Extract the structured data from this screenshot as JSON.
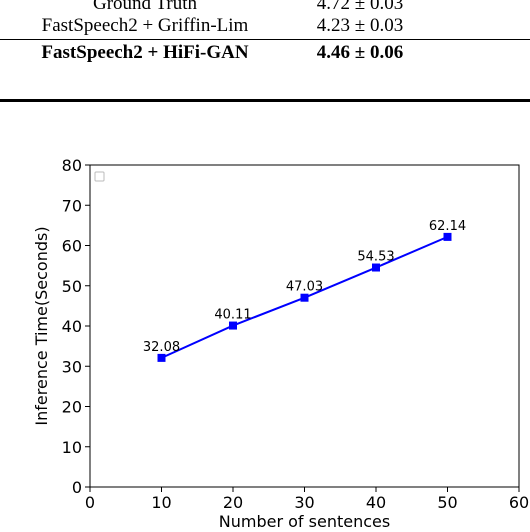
{
  "table": {
    "rows": [
      {
        "method": "Ground Truth",
        "score": "4.72 ± 0.03",
        "bold": false
      },
      {
        "method": "FastSpeech2 + Griffin-Lim",
        "score": "4.23 ± 0.03",
        "bold": false
      },
      {
        "method": "FastSpeech2 + HiFi-GAN",
        "score": "4.46 ± 0.06",
        "bold": true
      }
    ]
  },
  "chart_data": {
    "type": "line",
    "title": "",
    "xlabel": "Number of sentences",
    "ylabel": "Inference Time(Seconds)",
    "xlim": [
      0,
      60
    ],
    "ylim": [
      0,
      80
    ],
    "xticks": [
      0,
      10,
      20,
      30,
      40,
      50,
      60
    ],
    "yticks": [
      0,
      10,
      20,
      30,
      40,
      50,
      60,
      70,
      80
    ],
    "grid": false,
    "legend": "top-left",
    "series": [
      {
        "color": "#0000ff",
        "x": [
          10,
          20,
          30,
          40,
          50
        ],
        "y": [
          32.08,
          40.11,
          47.03,
          54.53,
          62.14
        ],
        "labels": [
          "32.08",
          "40.11",
          "47.03",
          "54.53",
          "62.14"
        ]
      }
    ]
  }
}
